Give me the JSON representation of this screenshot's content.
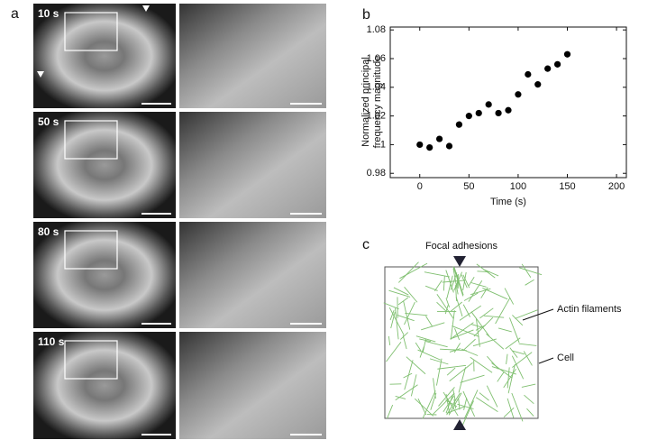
{
  "panel_a": {
    "label": "a",
    "frames": [
      "10 s",
      "50 s",
      "80 s",
      "110 s"
    ]
  },
  "chart_data": {
    "type": "scatter",
    "panel_label": "b",
    "x_label": "Time (s)",
    "y_label": [
      "Normalized principal",
      "frequency magnitude"
    ],
    "x": [
      0,
      10,
      20,
      30,
      40,
      50,
      60,
      70,
      80,
      90,
      100,
      110,
      120,
      130,
      140,
      150
    ],
    "values": [
      1.0,
      0.998,
      1.004,
      0.999,
      1.014,
      1.02,
      1.022,
      1.028,
      1.022,
      1.024,
      1.035,
      1.049,
      1.042,
      1.053,
      1.056,
      1.063
    ],
    "color": "#000000",
    "xlim": [
      -30,
      210
    ],
    "xticks": [
      0,
      50,
      100,
      150,
      200
    ],
    "ylim": [
      0.977,
      1.082
    ],
    "yticks": [
      0.98,
      1,
      1.02,
      1.04,
      1.06,
      1.08
    ]
  },
  "panel_c": {
    "label": "c",
    "focal": "Focal adhesions",
    "actin": "Actin filaments",
    "cell": "Cell"
  }
}
